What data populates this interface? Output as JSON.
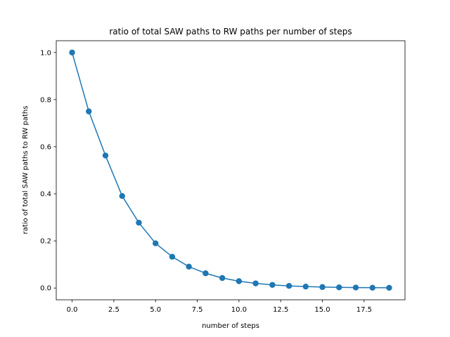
{
  "chart_data": {
    "type": "line",
    "title": "ratio of total SAW paths to RW paths per number of steps",
    "xlabel": "number of steps",
    "ylabel": "ratio of total SAW paths to RW paths",
    "xlim": [
      -0.95,
      19.95
    ],
    "ylim": [
      -0.05,
      1.05
    ],
    "x_ticks": [
      0.0,
      2.5,
      5.0,
      7.5,
      10.0,
      12.5,
      15.0,
      17.5
    ],
    "x_tick_labels": [
      "0.0",
      "2.5",
      "5.0",
      "7.5",
      "10.0",
      "12.5",
      "15.0",
      "17.5"
    ],
    "y_ticks": [
      0.0,
      0.2,
      0.4,
      0.6,
      0.8,
      1.0
    ],
    "y_tick_labels": [
      "0.0",
      "0.2",
      "0.4",
      "0.6",
      "0.8",
      "1.0"
    ],
    "grid": false,
    "legend": "none",
    "series": [
      {
        "color": "#1f77b4",
        "marker": "circle",
        "x": [
          0,
          1,
          2,
          3,
          4,
          5,
          6,
          7,
          8,
          9,
          10,
          11,
          12,
          13,
          14,
          15,
          16,
          17,
          18,
          19
        ],
        "y": [
          1.0,
          0.75,
          0.5625,
          0.3906,
          0.2773,
          0.1897,
          0.1327,
          0.0907,
          0.0626,
          0.0424,
          0.029,
          0.0196,
          0.0133,
          0.009,
          0.0061,
          0.0041,
          0.0028,
          0.0019,
          0.0013,
          0.0009
        ]
      }
    ]
  }
}
